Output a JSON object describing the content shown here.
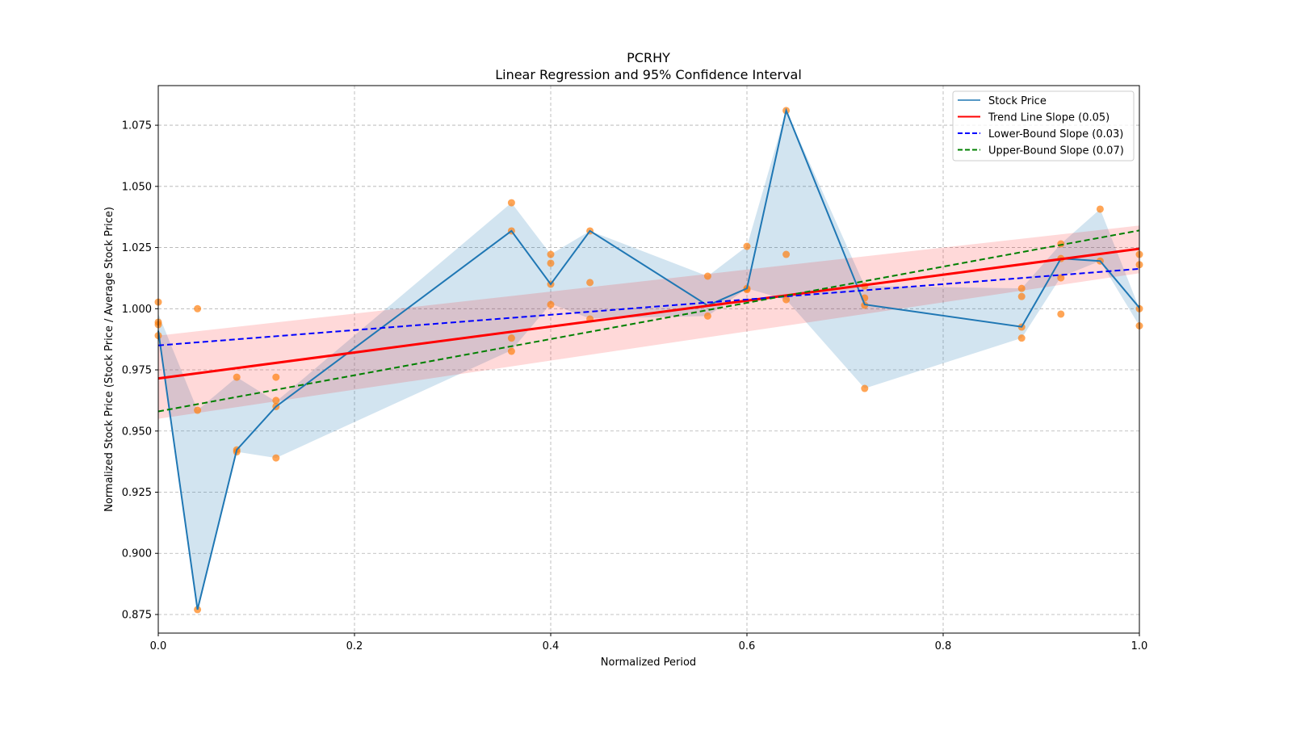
{
  "chart_data": {
    "type": "line",
    "title": "PCRHY",
    "subtitle": "Linear Regression and 95% Confidence Interval",
    "xlabel": "Normalized Period",
    "ylabel": "Normalized Stock Price (Stock Price / Average Stock Price)",
    "xlim": [
      0,
      1
    ],
    "ylim": [
      0.8674,
      1.0912
    ],
    "xticks": [
      "0.0",
      "0.2",
      "0.4",
      "0.6",
      "0.8",
      "1.0"
    ],
    "xtick_values": [
      0,
      0.2,
      0.4,
      0.6,
      0.8,
      1.0
    ],
    "yticks": [
      "0.875",
      "0.900",
      "0.925",
      "0.950",
      "0.975",
      "1.000",
      "1.025",
      "1.050",
      "1.075"
    ],
    "ytick_values": [
      0.875,
      0.9,
      0.925,
      0.95,
      0.975,
      1.0,
      1.025,
      1.05,
      1.075
    ],
    "grid": true,
    "legend_position": "top-right",
    "stock_price": {
      "name": "Stock Price",
      "color": "#1f77b4",
      "x": [
        0,
        0.04,
        0.08,
        0.12,
        0.36,
        0.4,
        0.44,
        0.56,
        0.6,
        0.64,
        0.72,
        0.88,
        0.92,
        0.96,
        1.0
      ],
      "y": [
        0.991,
        0.877,
        0.9423,
        0.96,
        1.0318,
        1.01,
        1.0318,
        1.0013,
        1.0083,
        1.081,
        1.0017,
        0.9926,
        1.0205,
        1.0195,
        1.0004
      ],
      "band_lower": [
        0.99,
        0.877,
        0.9415,
        0.939,
        0.983,
        1.002,
        0.996,
        0.997,
        1.0083,
        1.0037,
        0.9674,
        0.988,
        1.013,
        1.0195,
        0.993
      ],
      "band_upper": [
        0.998,
        0.9585,
        0.972,
        0.962,
        1.0433,
        1.0222,
        1.0318,
        1.0133,
        1.0255,
        1.081,
        1.0093,
        1.0083,
        1.0265,
        1.0407,
        1.0
      ]
    },
    "scatter": {
      "color": "#ff7f0e",
      "points": [
        [
          0,
          1.0027
        ],
        [
          0,
          0.9945
        ],
        [
          0,
          0.9935
        ],
        [
          0,
          0.989
        ],
        [
          0.04,
          1.0
        ],
        [
          0.04,
          0.9585
        ],
        [
          0.04,
          0.877
        ],
        [
          0.08,
          0.972
        ],
        [
          0.08,
          0.9423
        ],
        [
          0.08,
          0.9415
        ],
        [
          0.12,
          0.972
        ],
        [
          0.12,
          0.9625
        ],
        [
          0.12,
          0.96
        ],
        [
          0.12,
          0.939
        ],
        [
          0.36,
          1.0433
        ],
        [
          0.36,
          1.0318
        ],
        [
          0.36,
          0.988
        ],
        [
          0.36,
          0.9826
        ],
        [
          0.4,
          1.0222
        ],
        [
          0.4,
          1.0186
        ],
        [
          0.4,
          1.01
        ],
        [
          0.4,
          1.0017
        ],
        [
          0.44,
          1.0318
        ],
        [
          0.44,
          1.0107
        ],
        [
          0.44,
          0.9958
        ],
        [
          0.56,
          1.0133
        ],
        [
          0.56,
          0.997
        ],
        [
          0.6,
          1.0255
        ],
        [
          0.6,
          1.0083
        ],
        [
          0.6,
          1.0078
        ],
        [
          0.64,
          1.081
        ],
        [
          0.64,
          1.0222
        ],
        [
          0.64,
          1.0037
        ],
        [
          0.72,
          1.0093
        ],
        [
          0.72,
          1.0044
        ],
        [
          0.72,
          1.0014
        ],
        [
          0.72,
          0.9674
        ],
        [
          0.88,
          1.0083
        ],
        [
          0.88,
          1.005
        ],
        [
          0.88,
          0.9925
        ],
        [
          0.88,
          0.988
        ],
        [
          0.92,
          1.0265
        ],
        [
          0.92,
          1.0205
        ],
        [
          0.92,
          1.0126
        ],
        [
          0.92,
          0.9978
        ],
        [
          0.96,
          1.0407
        ],
        [
          0.96,
          1.0195
        ],
        [
          1.0,
          1.0222
        ],
        [
          1.0,
          1.018
        ],
        [
          1.0,
          1.0
        ],
        [
          1.0,
          0.993
        ]
      ]
    },
    "trend_line": {
      "name": "Trend Line Slope (0.05)",
      "color": "#ff0000",
      "y0": 0.9715,
      "y1": 1.0245,
      "ci_lower": [
        0.955,
        1.0145
      ],
      "ci_upper": [
        0.989,
        1.034
      ]
    },
    "lower_bound": {
      "name": "Lower-Bound Slope (0.03)",
      "color": "#0000ff",
      "y0": 0.985,
      "y1": 1.0163
    },
    "upper_bound": {
      "name": "Upper-Bound Slope (0.07)",
      "color": "#008000",
      "y0": 0.958,
      "y1": 1.032
    }
  }
}
